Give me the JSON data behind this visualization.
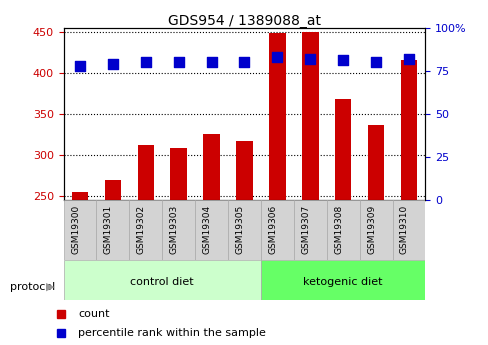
{
  "title": "GDS954 / 1389088_at",
  "samples": [
    "GSM19300",
    "GSM19301",
    "GSM19302",
    "GSM19303",
    "GSM19304",
    "GSM19305",
    "GSM19306",
    "GSM19307",
    "GSM19308",
    "GSM19309",
    "GSM19310"
  ],
  "counts": [
    255,
    270,
    312,
    308,
    325,
    317,
    448,
    450,
    368,
    336,
    415
  ],
  "percentile_ranks": [
    78,
    79,
    80,
    80,
    80,
    80,
    83,
    82,
    81,
    80,
    82
  ],
  "ylim_left": [
    245,
    455
  ],
  "ylim_right": [
    0,
    100
  ],
  "yticks_left": [
    250,
    300,
    350,
    400,
    450
  ],
  "yticks_right": [
    0,
    25,
    50,
    75,
    100
  ],
  "groups": [
    {
      "label": "control diet",
      "indices": [
        0,
        1,
        2,
        3,
        4,
        5
      ],
      "color": "#ccffcc"
    },
    {
      "label": "ketogenic diet",
      "indices": [
        6,
        7,
        8,
        9,
        10
      ],
      "color": "#66ff66"
    }
  ],
  "bar_color": "#cc0000",
  "dot_color": "#0000cc",
  "bg_color": "#d3d3d3",
  "plot_bg": "#ffffff",
  "grid_color": "#000000",
  "left_label_color": "#cc0000",
  "right_label_color": "#0000cc",
  "legend_count_label": "count",
  "legend_percentile_label": "percentile rank within the sample",
  "protocol_label": "protocol",
  "bar_width": 0.5,
  "dot_size": 60
}
